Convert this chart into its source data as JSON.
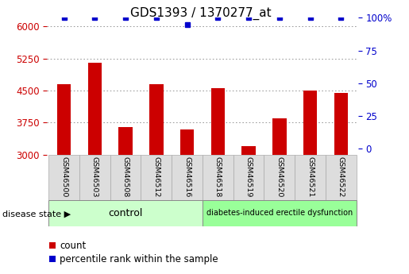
{
  "title": "GDS1393 / 1370277_at",
  "samples": [
    "GSM46500",
    "GSM46503",
    "GSM46508",
    "GSM46512",
    "GSM46516",
    "GSM46518",
    "GSM46519",
    "GSM46520",
    "GSM46521",
    "GSM46522"
  ],
  "counts": [
    4650,
    5150,
    3650,
    4650,
    3600,
    4550,
    3200,
    3850,
    4500,
    4450
  ],
  "percentiles": [
    100,
    100,
    100,
    100,
    95,
    100,
    100,
    100,
    100,
    100
  ],
  "ylim_left": [
    3000,
    6200
  ],
  "ylim_right": [
    -4.7,
    100
  ],
  "yticks_left": [
    3000,
    3750,
    4500,
    5250,
    6000
  ],
  "yticks_right": [
    0,
    25,
    50,
    75,
    100
  ],
  "bar_color": "#cc0000",
  "dot_color": "#0000cc",
  "control_label": "control",
  "disease_label": "diabetes-induced erectile dysfunction",
  "disease_state_label": "disease state",
  "control_color": "#ccffcc",
  "disease_color": "#99ff99",
  "tick_color_left": "#cc0000",
  "tick_color_right": "#0000cc",
  "title_fontsize": 11,
  "bar_width": 0.45,
  "legend_items": [
    "count",
    "percentile rank within the sample"
  ],
  "grid_color": "#888888",
  "background_color": "#ffffff"
}
